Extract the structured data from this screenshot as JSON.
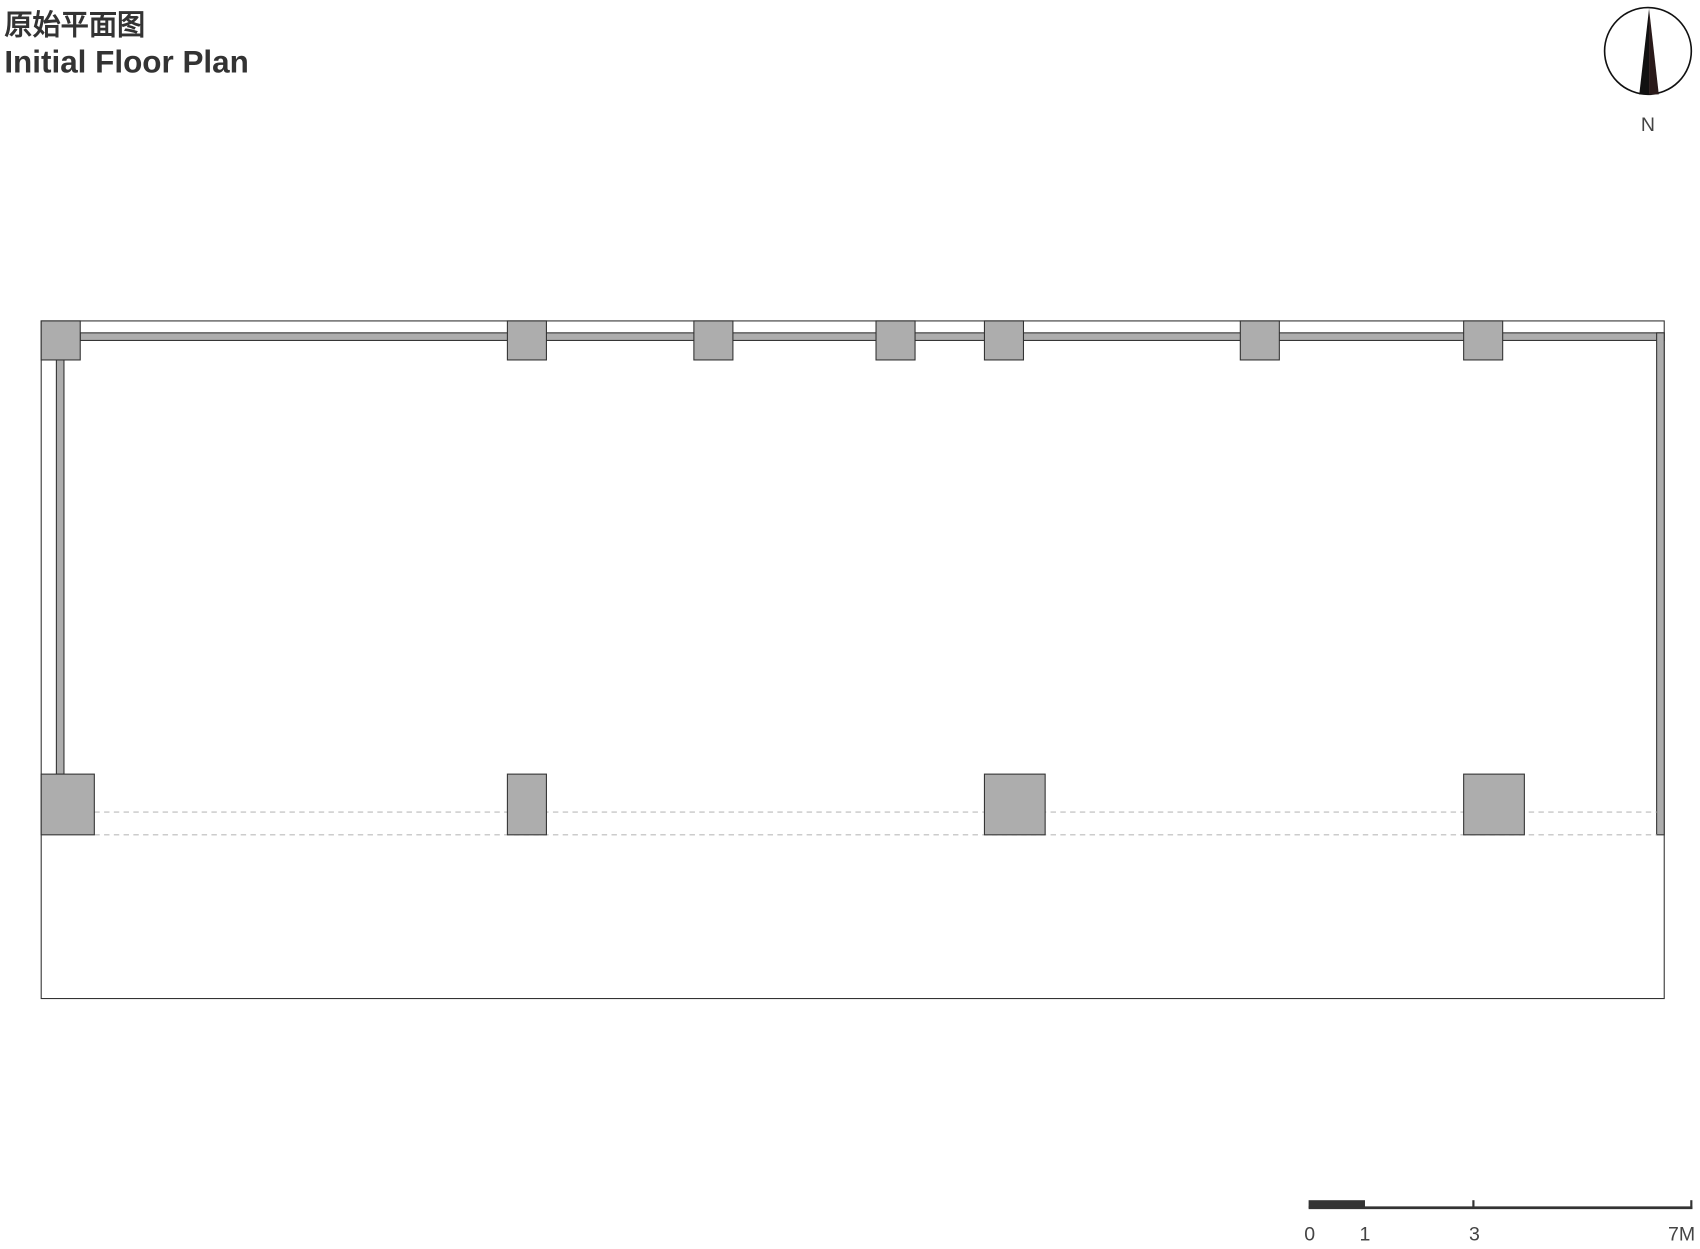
{
  "title": {
    "chinese": "原始平面图",
    "english": "Initial Floor Plan"
  },
  "north_arrow": {
    "label": "N"
  },
  "scale_bar": {
    "labels": [
      "0",
      "1",
      "3",
      "7M"
    ]
  },
  "colors": {
    "column_fill": "#adadad",
    "line": "#333333",
    "dashed": "#bbbbbb"
  }
}
